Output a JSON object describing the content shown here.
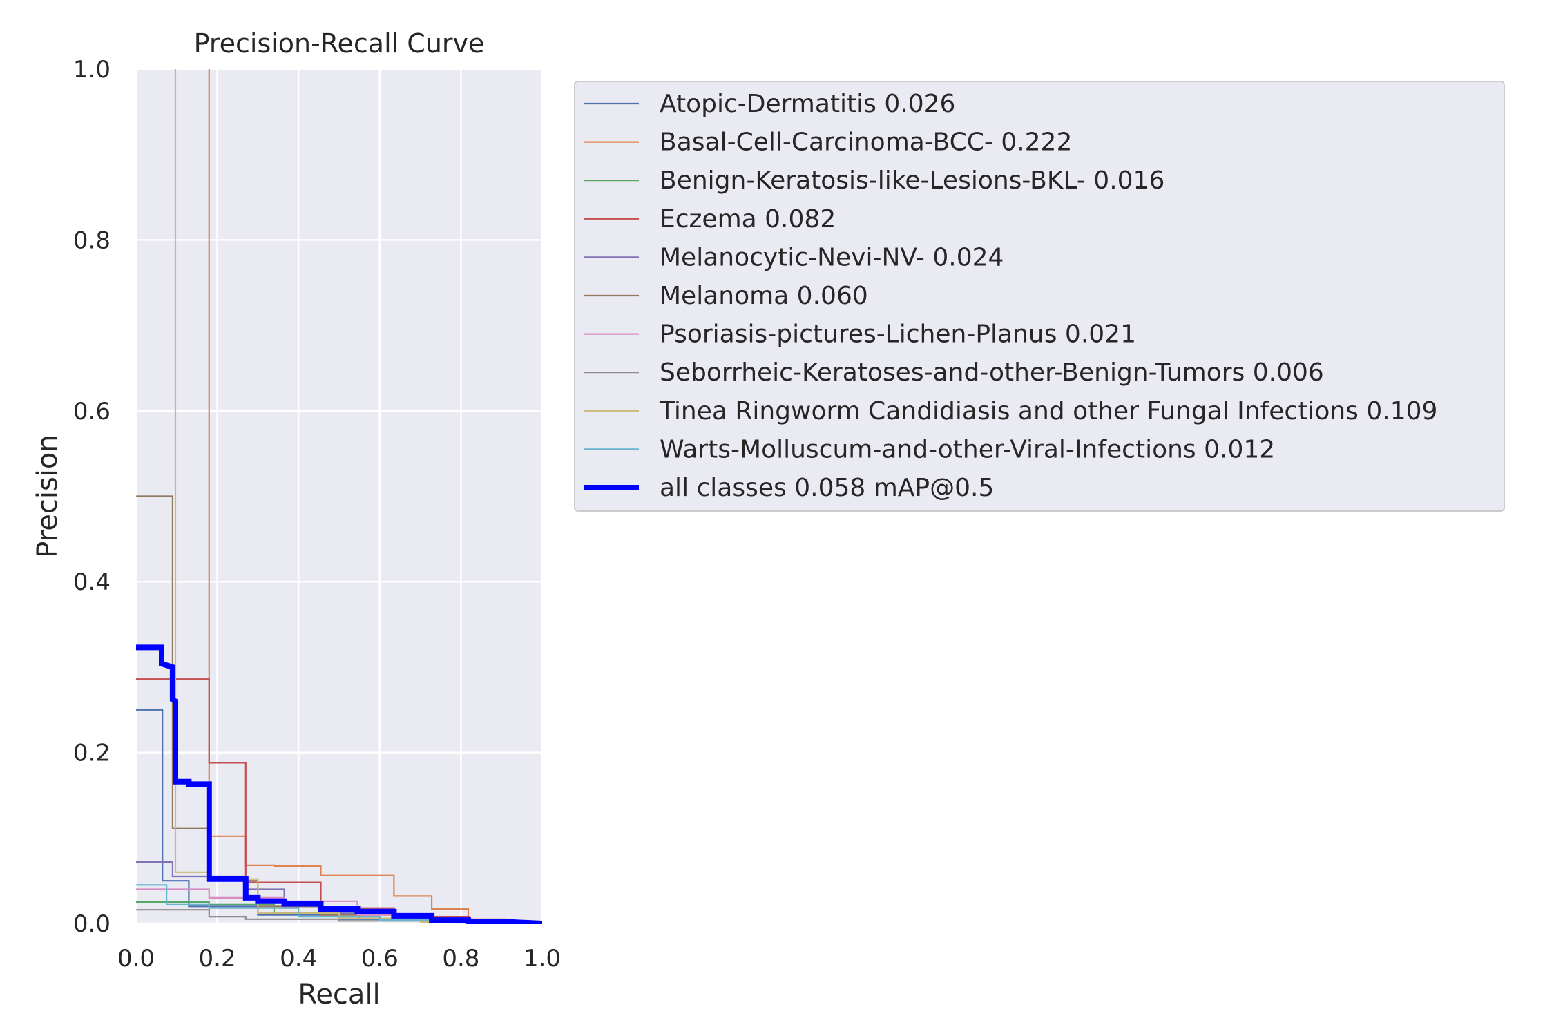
{
  "chart_data": {
    "type": "line",
    "title": "Precision-Recall Curve",
    "xlabel": "Recall",
    "ylabel": "Precision",
    "xlim": [
      0,
      1
    ],
    "ylim": [
      0,
      1
    ],
    "xticks": [
      "0.0",
      "0.2",
      "0.4",
      "0.6",
      "0.8",
      "1.0"
    ],
    "yticks": [
      "0.0",
      "0.2",
      "0.4",
      "0.6",
      "0.8",
      "1.0"
    ],
    "grid": true,
    "legend_position": "outside-right-top",
    "series": [
      {
        "name": "Atopic-Dermatitis 0.026",
        "color": "#4c72b0",
        "width": 1,
        "points": [
          [
            0,
            0.25
          ],
          [
            0.065,
            0.25
          ],
          [
            0.065,
            0.05
          ],
          [
            0.13,
            0.05
          ],
          [
            0.13,
            0.02
          ],
          [
            0.3,
            0.02
          ],
          [
            0.3,
            0.01
          ],
          [
            0.5,
            0.01
          ],
          [
            0.5,
            0.005
          ],
          [
            0.7,
            0.005
          ],
          [
            0.7,
            0.002
          ],
          [
            1,
            0
          ]
        ]
      },
      {
        "name": "Basal-Cell-Carcinoma-BCC- 0.222",
        "color": "#dd8452",
        "width": 1,
        "points": [
          [
            0.18,
            1.0
          ],
          [
            0.18,
            0.102
          ],
          [
            0.27,
            0.102
          ],
          [
            0.27,
            0.068
          ],
          [
            0.34,
            0.068
          ],
          [
            0.34,
            0.067
          ],
          [
            0.455,
            0.067
          ],
          [
            0.455,
            0.056
          ],
          [
            0.635,
            0.056
          ],
          [
            0.635,
            0.032
          ],
          [
            0.728,
            0.032
          ],
          [
            0.728,
            0.017
          ],
          [
            0.818,
            0.017
          ],
          [
            0.818,
            0.005
          ],
          [
            0.91,
            0.005
          ],
          [
            0.91,
            0.002
          ],
          [
            1,
            0
          ]
        ]
      },
      {
        "name": "Benign-Keratosis-like-Lesions-BKL- 0.016",
        "color": "#55a868",
        "width": 1,
        "points": [
          [
            0,
            0.025
          ],
          [
            0.18,
            0.025
          ],
          [
            0.18,
            0.022
          ],
          [
            0.34,
            0.022
          ],
          [
            0.34,
            0.012
          ],
          [
            0.55,
            0.012
          ],
          [
            0.55,
            0.006
          ],
          [
            0.75,
            0.006
          ],
          [
            0.75,
            0.003
          ],
          [
            1,
            0
          ]
        ]
      },
      {
        "name": "Eczema 0.082",
        "color": "#c44e52",
        "width": 1,
        "points": [
          [
            0,
            0.286
          ],
          [
            0.18,
            0.286
          ],
          [
            0.18,
            0.188
          ],
          [
            0.27,
            0.188
          ],
          [
            0.27,
            0.048
          ],
          [
            0.455,
            0.048
          ],
          [
            0.455,
            0.018
          ],
          [
            0.635,
            0.018
          ],
          [
            0.635,
            0.008
          ],
          [
            0.82,
            0.008
          ],
          [
            0.82,
            0.003
          ],
          [
            1,
            0
          ]
        ]
      },
      {
        "name": "Melanocytic-Nevi-NV- 0.024",
        "color": "#8172b3",
        "width": 1,
        "points": [
          [
            0,
            0.072
          ],
          [
            0.09,
            0.072
          ],
          [
            0.09,
            0.055
          ],
          [
            0.27,
            0.055
          ],
          [
            0.27,
            0.04
          ],
          [
            0.365,
            0.04
          ],
          [
            0.365,
            0.02
          ],
          [
            0.455,
            0.02
          ],
          [
            0.455,
            0.012
          ],
          [
            0.64,
            0.012
          ],
          [
            0.64,
            0.006
          ],
          [
            0.8,
            0.006
          ],
          [
            0.8,
            0.002
          ],
          [
            1,
            0
          ]
        ]
      },
      {
        "name": "Melanoma 0.060",
        "color": "#937860",
        "width": 1,
        "points": [
          [
            0,
            0.5
          ],
          [
            0.09,
            0.5
          ],
          [
            0.09,
            0.111
          ],
          [
            0.18,
            0.111
          ],
          [
            0.18,
            0.05
          ],
          [
            0.3,
            0.05
          ],
          [
            0.3,
            0.02
          ],
          [
            0.455,
            0.02
          ],
          [
            0.455,
            0.01
          ],
          [
            0.64,
            0.01
          ],
          [
            0.64,
            0.005
          ],
          [
            0.82,
            0.005
          ],
          [
            0.82,
            0.002
          ],
          [
            1,
            0
          ]
        ]
      },
      {
        "name": "Psoriasis-pictures-Lichen-Planus 0.021",
        "color": "#da8bc3",
        "width": 1,
        "points": [
          [
            0,
            0.04
          ],
          [
            0.18,
            0.04
          ],
          [
            0.18,
            0.03
          ],
          [
            0.365,
            0.03
          ],
          [
            0.365,
            0.026
          ],
          [
            0.545,
            0.026
          ],
          [
            0.545,
            0.01
          ],
          [
            0.73,
            0.01
          ],
          [
            0.73,
            0.004
          ],
          [
            1,
            0
          ]
        ]
      },
      {
        "name": "Seborrheic-Keratoses-and-other-Benign-Tumors 0.006",
        "color": "#8c8c8c",
        "width": 1,
        "points": [
          [
            0,
            0.016
          ],
          [
            0.18,
            0.016
          ],
          [
            0.18,
            0.008
          ],
          [
            0.27,
            0.008
          ],
          [
            0.27,
            0.005
          ],
          [
            0.5,
            0.005
          ],
          [
            0.5,
            0.003
          ],
          [
            0.75,
            0.003
          ],
          [
            0.75,
            0.001
          ],
          [
            1,
            0
          ]
        ]
      },
      {
        "name": "Tinea Ringworm Candidiasis and other Fungal Infections 0.109",
        "color": "#ccb974",
        "width": 1,
        "points": [
          [
            0.097,
            1.0
          ],
          [
            0.097,
            0.06
          ],
          [
            0.18,
            0.06
          ],
          [
            0.18,
            0.052
          ],
          [
            0.3,
            0.052
          ],
          [
            0.3,
            0.012
          ],
          [
            0.5,
            0.012
          ],
          [
            0.5,
            0.006
          ],
          [
            0.7,
            0.006
          ],
          [
            0.7,
            0.002
          ],
          [
            1,
            0
          ]
        ]
      },
      {
        "name": "Warts-Molluscum-and-other-Viral-Infections 0.012",
        "color": "#64b5cd",
        "width": 1,
        "points": [
          [
            0,
            0.045
          ],
          [
            0.075,
            0.045
          ],
          [
            0.075,
            0.022
          ],
          [
            0.18,
            0.022
          ],
          [
            0.18,
            0.018
          ],
          [
            0.4,
            0.018
          ],
          [
            0.4,
            0.008
          ],
          [
            0.6,
            0.008
          ],
          [
            0.6,
            0.004
          ],
          [
            0.8,
            0.004
          ],
          [
            0.8,
            0.001
          ],
          [
            1,
            0
          ]
        ]
      },
      {
        "name": "all classes 0.058 mAP@0.5",
        "color": "#0000ff",
        "width": 3,
        "points": [
          [
            0,
            0.323
          ],
          [
            0.063,
            0.323
          ],
          [
            0.063,
            0.304
          ],
          [
            0.09,
            0.3
          ],
          [
            0.09,
            0.262
          ],
          [
            0.097,
            0.26
          ],
          [
            0.097,
            0.166
          ],
          [
            0.13,
            0.166
          ],
          [
            0.13,
            0.163
          ],
          [
            0.18,
            0.163
          ],
          [
            0.18,
            0.052
          ],
          [
            0.27,
            0.052
          ],
          [
            0.27,
            0.03
          ],
          [
            0.3,
            0.03
          ],
          [
            0.3,
            0.026
          ],
          [
            0.365,
            0.026
          ],
          [
            0.365,
            0.023
          ],
          [
            0.455,
            0.023
          ],
          [
            0.455,
            0.017
          ],
          [
            0.545,
            0.017
          ],
          [
            0.545,
            0.014
          ],
          [
            0.635,
            0.014
          ],
          [
            0.635,
            0.009
          ],
          [
            0.728,
            0.009
          ],
          [
            0.728,
            0.004
          ],
          [
            0.818,
            0.004
          ],
          [
            0.818,
            0.002
          ],
          [
            0.91,
            0.002
          ],
          [
            1,
            0
          ]
        ]
      }
    ]
  }
}
